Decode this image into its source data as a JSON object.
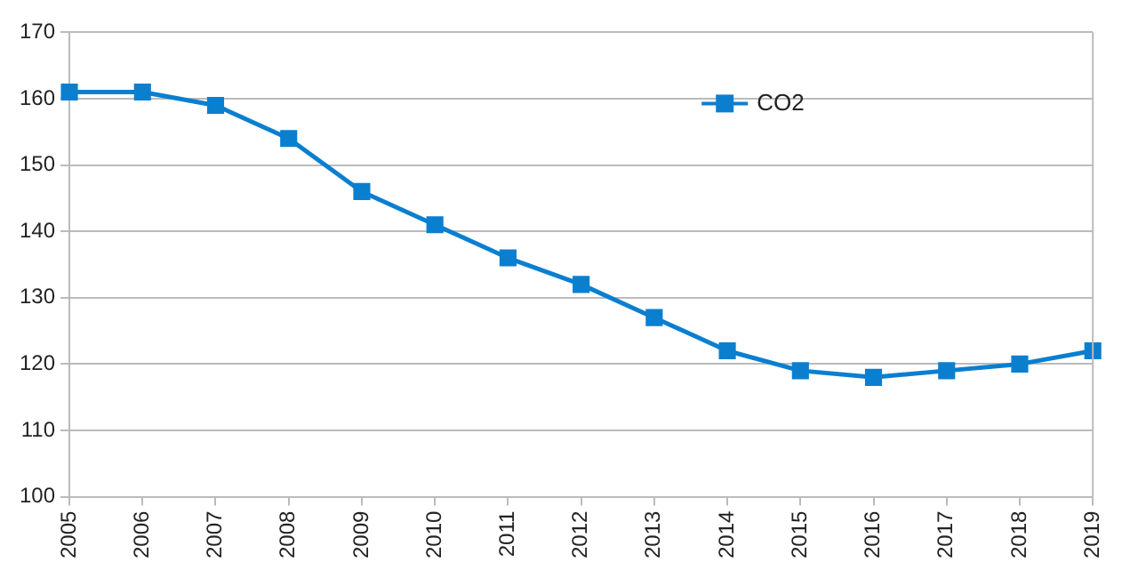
{
  "chart_data": {
    "type": "line",
    "categories": [
      "2005",
      "2006",
      "2007",
      "2008",
      "2009",
      "2010",
      "2011",
      "2012",
      "2013",
      "2014",
      "2015",
      "2016",
      "2017",
      "2018",
      "2019"
    ],
    "series": [
      {
        "name": "CO2",
        "color": "#0a7fd0",
        "values": [
          161,
          161,
          159,
          154,
          146,
          141,
          136,
          132,
          127,
          122,
          119,
          118,
          119,
          120,
          122
        ]
      }
    ],
    "ylim": [
      100,
      170
    ],
    "yticks": [
      100,
      110,
      120,
      130,
      140,
      150,
      160,
      170
    ],
    "grid": "y",
    "legend": "top right",
    "marker": "square",
    "line_style": "solid"
  }
}
